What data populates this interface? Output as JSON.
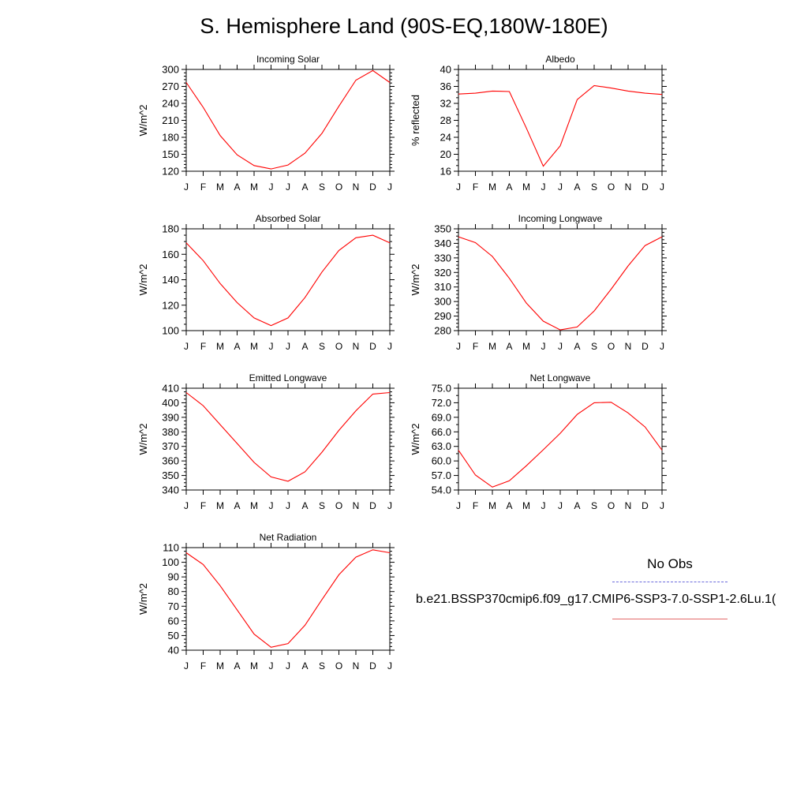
{
  "title": "S. Hemisphere Land (90S-EQ,180W-180E)",
  "legend": {
    "obs_label": "No Obs",
    "model_label": "b.e21.BSSP370cmip6.f09_g17.CMIP6-SSP3-7.0-SSP1-2.6Lu.1(",
    "obs_color": "#6b6bdc",
    "model_color": "#e36a6a"
  },
  "month_labels": [
    "J",
    "F",
    "M",
    "A",
    "M",
    "J",
    "J",
    "A",
    "S",
    "O",
    "N",
    "D",
    "J"
  ],
  "chart_data": [
    {
      "type": "line",
      "title": "Incoming Solar",
      "ylabel": "W/m^2",
      "ylim": [
        120,
        300
      ],
      "yticks": [
        "120",
        "150",
        "180",
        "210",
        "240",
        "270",
        "300"
      ],
      "yminor": 5,
      "series_color": "#ff0000",
      "values": [
        277,
        233,
        183,
        149,
        130,
        124,
        131,
        152,
        187,
        235,
        281,
        298,
        277
      ]
    },
    {
      "type": "line",
      "title": "Albedo",
      "ylabel": "% reflected",
      "ylim": [
        16,
        40
      ],
      "yticks": [
        "16",
        "20",
        "24",
        "28",
        "32",
        "36",
        "40"
      ],
      "yminor": 3,
      "series_color": "#ff0000",
      "values": [
        34.2,
        34.4,
        34.9,
        34.8,
        26.2,
        17.2,
        22.0,
        32.9,
        36.2,
        35.6,
        34.9,
        34.4,
        34.1
      ]
    },
    {
      "type": "line",
      "title": "Absorbed Solar",
      "ylabel": "W/m^2",
      "ylim": [
        100,
        180
      ],
      "yticks": [
        "100",
        "120",
        "140",
        "160",
        "180"
      ],
      "yminor": 4,
      "series_color": "#ff0000",
      "values": [
        169,
        155,
        137,
        122,
        110,
        104,
        110,
        126,
        146,
        163,
        173,
        175,
        169
      ]
    },
    {
      "type": "line",
      "title": "Incoming Longwave",
      "ylabel": "W/m^2",
      "ylim": [
        280,
        350
      ],
      "yticks": [
        "280",
        "290",
        "300",
        "310",
        "320",
        "330",
        "340",
        "350"
      ],
      "yminor": 4,
      "series_color": "#ff0000",
      "values": [
        344.5,
        340.5,
        331,
        316,
        299,
        286.5,
        280.5,
        282.5,
        293.5,
        308.5,
        324.5,
        338.5,
        344.5
      ]
    },
    {
      "type": "line",
      "title": "Emitted Longwave",
      "ylabel": "W/m^2",
      "ylim": [
        340,
        410
      ],
      "yticks": [
        "340",
        "350",
        "360",
        "370",
        "380",
        "390",
        "400",
        "410"
      ],
      "yminor": 4,
      "series_color": "#ff0000",
      "values": [
        407,
        398,
        385,
        372,
        359,
        349,
        346,
        352.5,
        366,
        381,
        394.5,
        406,
        407
      ]
    },
    {
      "type": "line",
      "title": "Net Longwave",
      "ylabel": "W/m^2",
      "ylim": [
        54,
        75
      ],
      "yticks": [
        "54.0",
        "57.0",
        "60.0",
        "63.0",
        "66.0",
        "69.0",
        "72.0",
        "75.0"
      ],
      "yminor": 2,
      "series_color": "#ff0000",
      "values": [
        62.2,
        57.1,
        54.6,
        55.9,
        59.0,
        62.3,
        65.7,
        69.6,
        72.0,
        72.1,
        69.9,
        67.0,
        62.2
      ]
    },
    {
      "type": "line",
      "title": "Net Radiation",
      "ylabel": "W/m^2",
      "ylim": [
        40,
        110
      ],
      "yticks": [
        "40",
        "50",
        "60",
        "70",
        "80",
        "90",
        "100",
        "110"
      ],
      "yminor": 4,
      "series_color": "#ff0000",
      "values": [
        106.5,
        98.5,
        84,
        67.5,
        51,
        42,
        44.5,
        57,
        74.5,
        91.5,
        103.5,
        108.5,
        106.5
      ]
    }
  ]
}
